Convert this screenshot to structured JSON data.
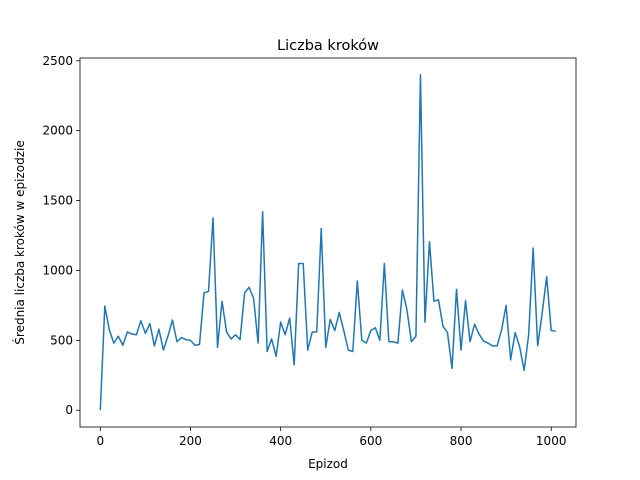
{
  "chart_data": {
    "type": "line",
    "title": "Liczba kroków",
    "xlabel": "Epizod",
    "ylabel": "Średnia liczba kroków w epizodzie",
    "xlim": [
      -45,
      1055
    ],
    "ylim": [
      -120,
      2520
    ],
    "xticks": [
      0,
      200,
      400,
      600,
      800,
      1000
    ],
    "yticks": [
      0,
      500,
      1000,
      1500,
      2000,
      2500
    ],
    "grid": false,
    "legend": "none",
    "color": "#1f77b4",
    "series": [
      {
        "x": [
          0,
          10,
          20,
          30,
          40,
          50,
          60,
          70,
          80,
          90,
          100,
          110,
          120,
          130,
          140,
          150,
          160,
          170,
          180,
          190,
          200,
          210,
          220,
          230,
          240,
          250,
          260,
          270,
          280,
          290,
          300,
          310,
          320,
          330,
          340,
          350,
          360,
          370,
          380,
          390,
          400,
          410,
          420,
          430,
          440,
          450,
          460,
          470,
          480,
          490,
          500,
          510,
          520,
          530,
          540,
          550,
          560,
          570,
          580,
          590,
          600,
          610,
          620,
          630,
          640,
          650,
          660,
          670,
          680,
          690,
          700,
          710,
          720,
          730,
          740,
          750,
          760,
          770,
          780,
          790,
          800,
          810,
          820,
          830,
          840,
          850,
          860,
          870,
          880,
          890,
          900,
          910,
          920,
          930,
          940,
          950,
          960,
          970,
          980,
          990,
          1000,
          1010
        ],
        "y": [
          0,
          745,
          575,
          480,
          530,
          465,
          560,
          545,
          540,
          640,
          550,
          620,
          460,
          580,
          430,
          530,
          645,
          490,
          520,
          505,
          500,
          465,
          470,
          840,
          850,
          1375,
          450,
          780,
          560,
          510,
          540,
          505,
          840,
          880,
          800,
          480,
          1420,
          420,
          510,
          385,
          630,
          540,
          660,
          325,
          1050,
          1050,
          430,
          560,
          560,
          1300,
          450,
          650,
          570,
          700,
          570,
          430,
          420,
          925,
          500,
          480,
          570,
          590,
          500,
          1050,
          490,
          490,
          480,
          860,
          720,
          490,
          530,
          2400,
          630,
          1205,
          780,
          790,
          600,
          555,
          300,
          865,
          430,
          785,
          490,
          615,
          545,
          495,
          480,
          460,
          460,
          575,
          750,
          360,
          555,
          455,
          285,
          540,
          1160,
          460,
          695,
          955,
          570,
          565
        ]
      }
    ]
  }
}
